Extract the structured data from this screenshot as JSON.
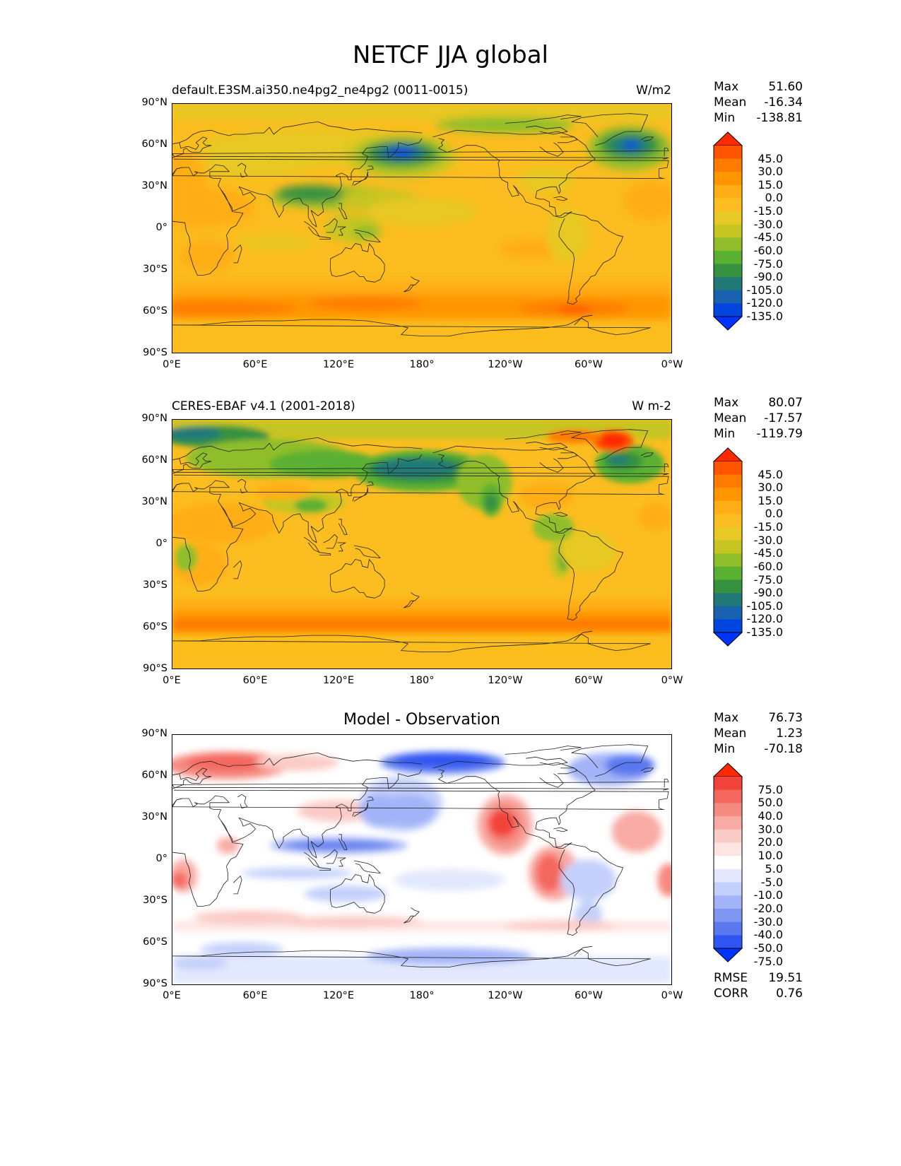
{
  "figure": {
    "title": "NETCF JJA global"
  },
  "axes": {
    "lat_labels": [
      "90°N",
      "60°N",
      "30°N",
      "0°",
      "30°S",
      "60°S",
      "90°S"
    ],
    "lon_labels": [
      "0°E",
      "60°E",
      "120°E",
      "180°",
      "120°W",
      "60°W",
      "0°W"
    ]
  },
  "panels": [
    {
      "id": "model",
      "title_left": "default.E3SM.ai350.ne4pg2_ne4pg2 (0011-0015)",
      "title_right": "W/m2",
      "title_center": "",
      "stats": [
        {
          "label": "Max",
          "value": "51.60"
        },
        {
          "label": "Mean",
          "value": "-16.34"
        },
        {
          "label": "Min",
          "value": "-138.81"
        }
      ],
      "colorbar": {
        "labels": [
          "45.0",
          "30.0",
          "15.0",
          "0.0",
          "-15.0",
          "-30.0",
          "-45.0",
          "-60.0",
          "-75.0",
          "-90.0",
          "-105.0",
          "-120.0",
          "-135.0"
        ],
        "colors": [
          "#ff2a00",
          "#ff5500",
          "#ff7b00",
          "#ff9600",
          "#ffae18",
          "#fbbd1f",
          "#e8c824",
          "#c6c522",
          "#8fbe2a",
          "#5ab030",
          "#36923f",
          "#217a78",
          "#1a61b0",
          "#0045e0",
          "#0033ff"
        ]
      }
    },
    {
      "id": "obs",
      "title_left": "CERES-EBAF v4.1 (2001-2018)",
      "title_right": "W m-2",
      "title_center": "",
      "stats": [
        {
          "label": "Max",
          "value": "80.07"
        },
        {
          "label": "Mean",
          "value": "-17.57"
        },
        {
          "label": "Min",
          "value": "-119.79"
        }
      ],
      "colorbar": {
        "labels": [
          "45.0",
          "30.0",
          "15.0",
          "0.0",
          "-15.0",
          "-30.0",
          "-45.0",
          "-60.0",
          "-75.0",
          "-90.0",
          "-105.0",
          "-120.0",
          "-135.0"
        ],
        "colors": [
          "#ff2a00",
          "#ff5500",
          "#ff7b00",
          "#ff9600",
          "#ffae18",
          "#fbbd1f",
          "#e8c824",
          "#c6c522",
          "#8fbe2a",
          "#5ab030",
          "#36923f",
          "#217a78",
          "#1a61b0",
          "#0045e0",
          "#0033ff"
        ]
      }
    },
    {
      "id": "diff",
      "title_left": "",
      "title_right": "",
      "title_center": "Model - Observation",
      "stats": [
        {
          "label": "Max",
          "value": "76.73"
        },
        {
          "label": "Mean",
          "value": "1.23"
        },
        {
          "label": "Min",
          "value": "-70.18"
        }
      ],
      "extra_stats": [
        {
          "label": "RMSE",
          "value": "19.51"
        },
        {
          "label": "CORR",
          "value": "0.76"
        }
      ],
      "colorbar": {
        "labels": [
          "75.0",
          "50.0",
          "40.0",
          "30.0",
          "20.0",
          "10.0",
          "5.0",
          "-5.0",
          "-10.0",
          "-20.0",
          "-30.0",
          "-40.0",
          "-50.0",
          "-75.0"
        ],
        "colors": [
          "#ff2a00",
          "#f2433a",
          "#f4675e",
          "#f58a80",
          "#f8aba4",
          "#fbcbc6",
          "#fde5e3",
          "#ffffff",
          "#e2e8fd",
          "#c4d0fb",
          "#a2b4f7",
          "#7e97f3",
          "#5a79ef",
          "#2f55f2",
          "#0033ff"
        ]
      }
    }
  ]
}
